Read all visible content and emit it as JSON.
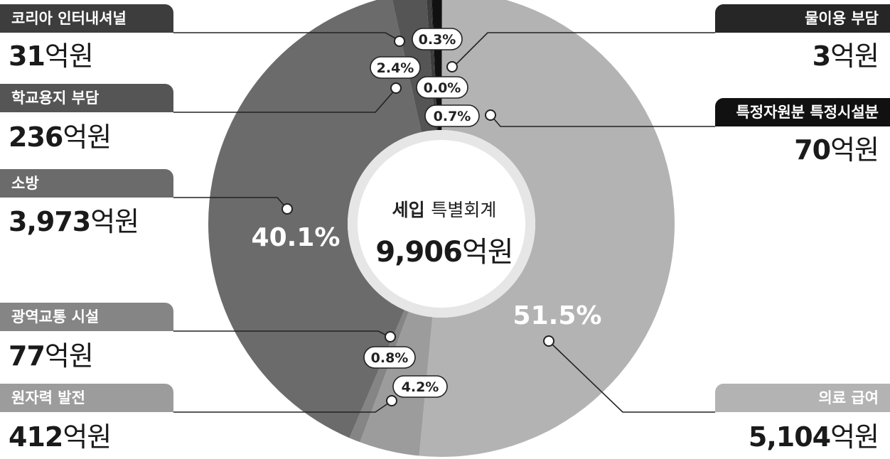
{
  "center": {
    "title_strong": "세입",
    "title_rest": "특별회계",
    "total_value": "9,906",
    "unit": "억원"
  },
  "chart_data": {
    "type": "pie",
    "variant": "donut",
    "total": 9906,
    "unit": "억원",
    "slices": [
      {
        "name": "의료 급여",
        "value": 5104,
        "value_label": "5,104",
        "percent": "51.5%",
        "color": "#b3b3b3"
      },
      {
        "name": "원자력 발전",
        "value": 412,
        "value_label": "412",
        "percent": "4.2%",
        "color": "#9c9c9c"
      },
      {
        "name": "광역교통 시설",
        "value": 77,
        "value_label": "77",
        "percent": "0.8%",
        "color": "#858585"
      },
      {
        "name": "소방",
        "value": 3973,
        "value_label": "3,973",
        "percent": "40.1%",
        "color": "#6b6b6b"
      },
      {
        "name": "학교용지 부담",
        "value": 236,
        "value_label": "236",
        "percent": "2.4%",
        "color": "#555555"
      },
      {
        "name": "코리아 인터내셔널",
        "value": 31,
        "value_label": "31",
        "percent": "0.3%",
        "color": "#3d3d3d"
      },
      {
        "name": "물이용 부담",
        "value": 3,
        "value_label": "3",
        "percent": "0.0%",
        "color": "#262626"
      },
      {
        "name": "특정자원분 특정시설분",
        "value": 70,
        "value_label": "70",
        "percent": "0.7%",
        "color": "#111111"
      }
    ]
  }
}
